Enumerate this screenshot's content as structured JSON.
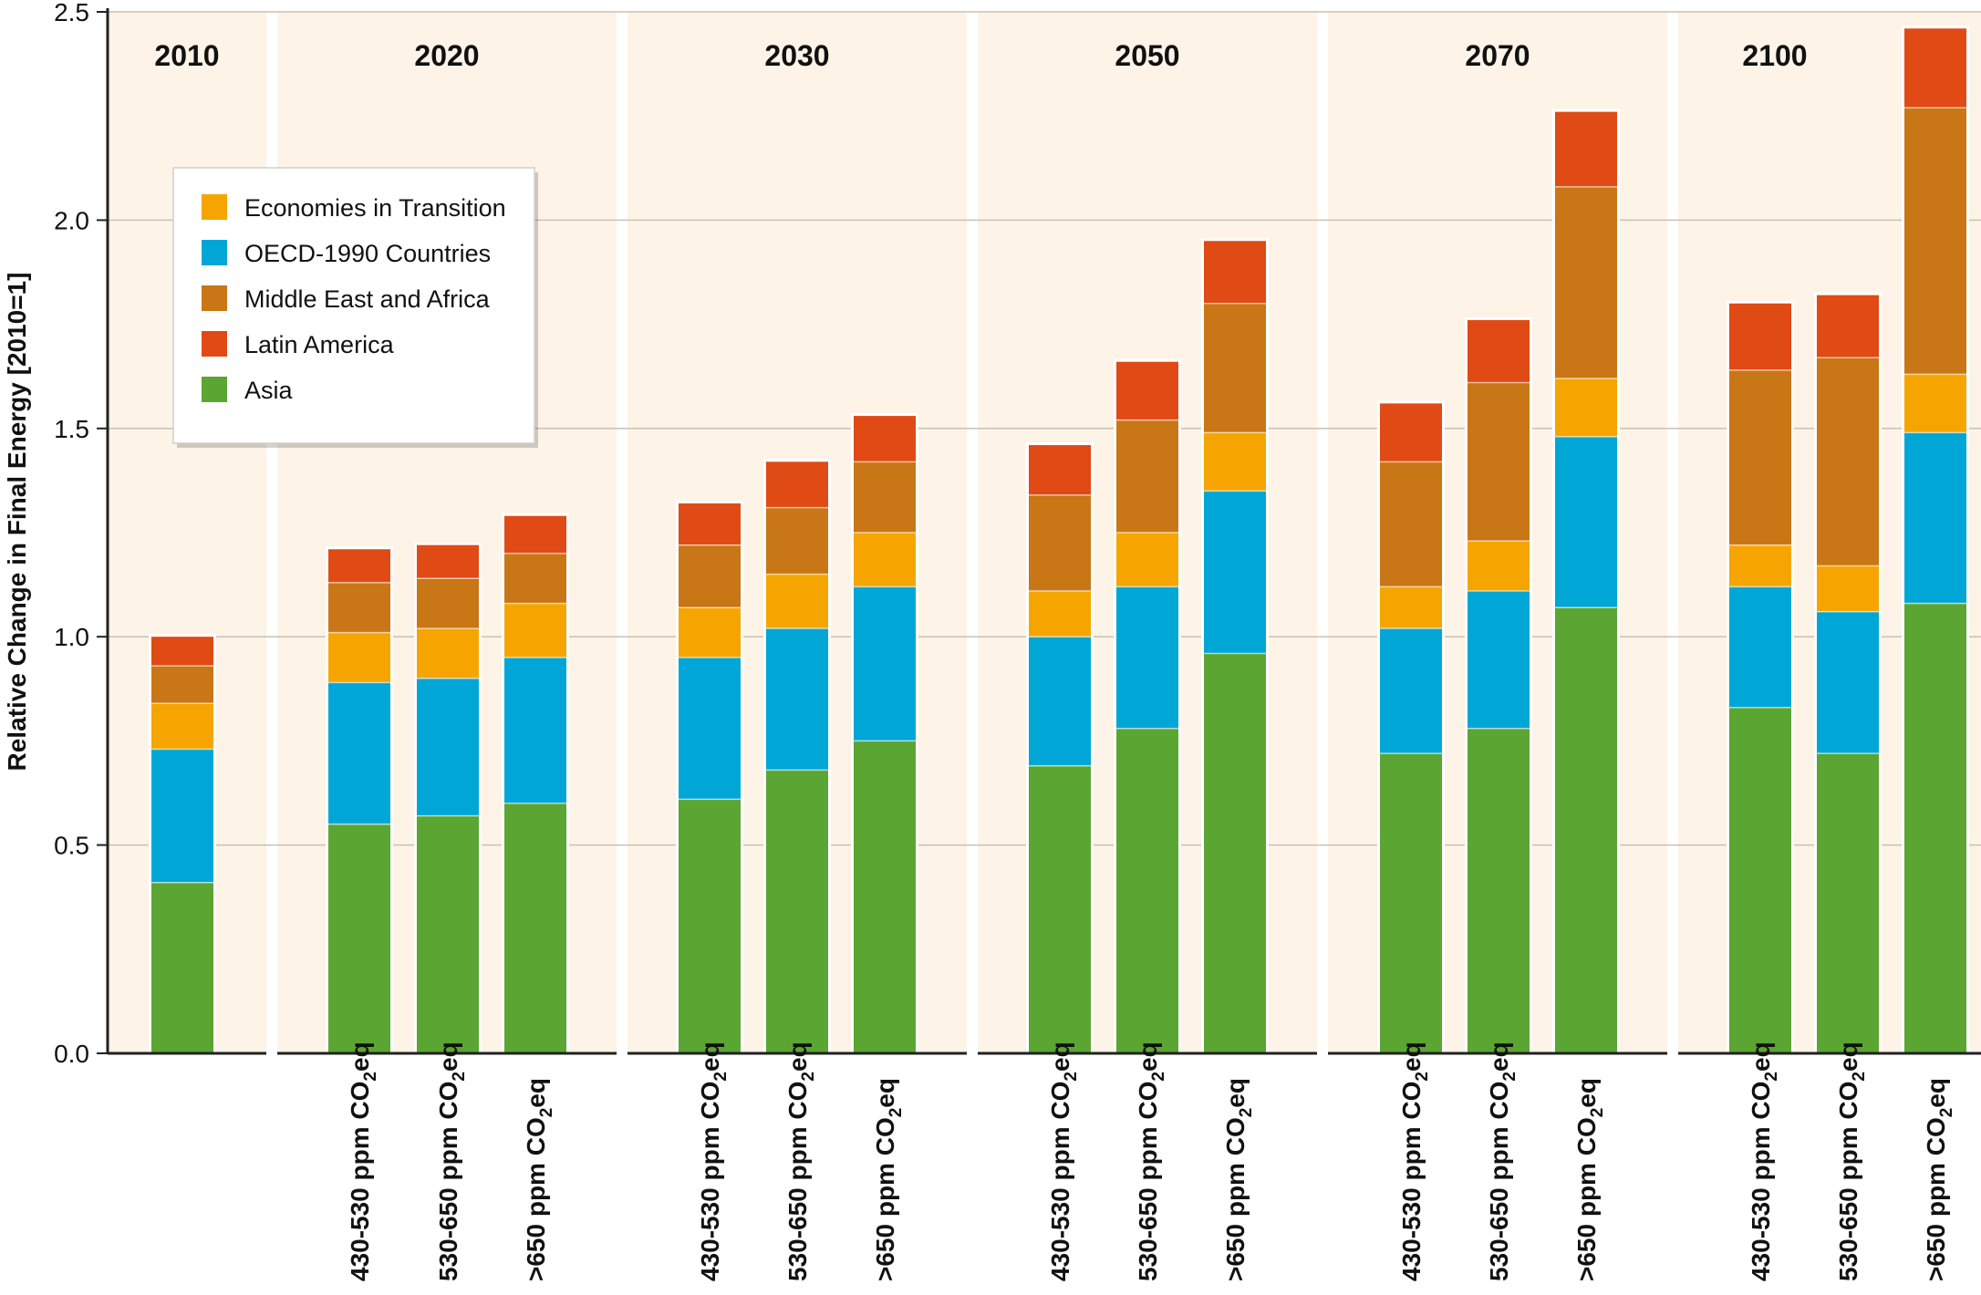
{
  "chart_data": {
    "type": "bar",
    "stacked": true,
    "ylabel": "Relative Change in Final Energy [2010=1]",
    "ylim": [
      0,
      2.5
    ],
    "yticks": [
      "0.0",
      "0.5",
      "1.0",
      "1.5",
      "2.0",
      "2.5"
    ],
    "grid": true,
    "legend_position": "top-left",
    "legend": [
      "Economies in Transition",
      "OECD-1990 Countries",
      "Middle East and Africa",
      "Latin America",
      "Asia"
    ],
    "category_parts": [
      "ppm CO",
      "2",
      "eq"
    ],
    "colors": {
      "Asia": "#5ba532",
      "OECD-1990 Countries": "#00a7d6",
      "Economies in Transition": "#f6a500",
      "Middle East and Africa": "#c97616",
      "Latin America": "#e04a14",
      "panel_background": "#fdf3e7"
    },
    "panels": [
      {
        "year": "2010",
        "bars": [
          {
            "category": "",
            "cumulative": [
              0.41,
              0.73,
              0.84,
              0.93,
              1.0
            ]
          }
        ]
      },
      {
        "year": "2020",
        "bars": [
          {
            "category": "430-530",
            "cumulative": [
              0.55,
              0.89,
              1.01,
              1.13,
              1.21
            ]
          },
          {
            "category": "530-650",
            "cumulative": [
              0.57,
              0.9,
              1.02,
              1.14,
              1.22
            ]
          },
          {
            "category": ">650",
            "cumulative": [
              0.6,
              0.95,
              1.08,
              1.2,
              1.29
            ]
          }
        ]
      },
      {
        "year": "2030",
        "bars": [
          {
            "category": "430-530",
            "cumulative": [
              0.61,
              0.95,
              1.07,
              1.22,
              1.32
            ]
          },
          {
            "category": "530-650",
            "cumulative": [
              0.68,
              1.02,
              1.15,
              1.31,
              1.42
            ]
          },
          {
            "category": ">650",
            "cumulative": [
              0.75,
              1.12,
              1.25,
              1.42,
              1.53
            ]
          }
        ]
      },
      {
        "year": "2050",
        "bars": [
          {
            "category": "430-530",
            "cumulative": [
              0.69,
              1.0,
              1.11,
              1.34,
              1.46
            ]
          },
          {
            "category": "530-650",
            "cumulative": [
              0.78,
              1.12,
              1.25,
              1.52,
              1.66
            ]
          },
          {
            "category": ">650",
            "cumulative": [
              0.96,
              1.35,
              1.49,
              1.8,
              1.95
            ]
          }
        ]
      },
      {
        "year": "2070",
        "bars": [
          {
            "category": "430-530",
            "cumulative": [
              0.72,
              1.02,
              1.12,
              1.42,
              1.56
            ]
          },
          {
            "category": "530-650",
            "cumulative": [
              0.78,
              1.11,
              1.23,
              1.61,
              1.76
            ]
          },
          {
            "category": ">650",
            "cumulative": [
              1.07,
              1.48,
              1.62,
              2.08,
              2.26
            ]
          }
        ]
      },
      {
        "year": "2100",
        "bars": [
          {
            "category": "430-530",
            "cumulative": [
              0.83,
              1.12,
              1.22,
              1.64,
              1.8
            ]
          },
          {
            "category": "530-650",
            "cumulative": [
              0.72,
              1.06,
              1.17,
              1.67,
              1.82
            ]
          },
          {
            "category": ">650",
            "cumulative": [
              1.08,
              1.49,
              1.63,
              2.27,
              2.46
            ]
          }
        ]
      }
    ]
  }
}
